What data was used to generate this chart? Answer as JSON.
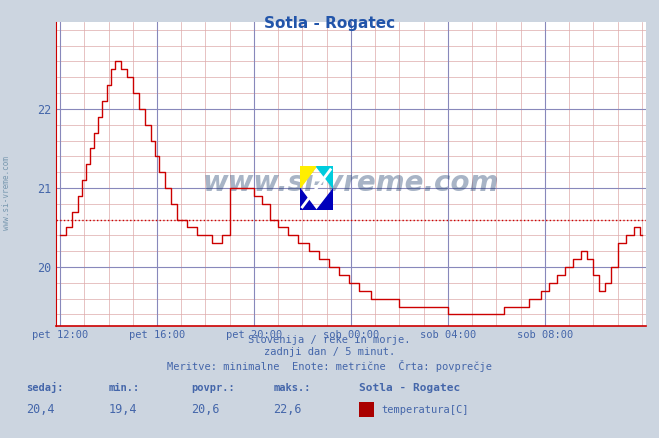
{
  "title": "Sotla - Rogatec",
  "title_color": "#2255aa",
  "bg_color": "#ccd5e0",
  "plot_bg_color": "#ffffff",
  "line_color": "#cc0000",
  "avg_value": 20.6,
  "grid_minor_color": "#ddaaaa",
  "grid_major_color": "#8888bb",
  "text_color": "#4466aa",
  "x_tick_labels": [
    "pet 12:00",
    "pet 16:00",
    "pet 20:00",
    "sob 00:00",
    "sob 04:00",
    "sob 08:00"
  ],
  "x_tick_positions": [
    0,
    48,
    96,
    144,
    192,
    240
  ],
  "y_ticks": [
    20,
    21,
    22
  ],
  "ylim_min": 19.25,
  "ylim_max": 23.1,
  "xlim_min": -2,
  "xlim_max": 290,
  "subtitle1": "Slovenija / reke in morje.",
  "subtitle2": "zadnji dan / 5 minut.",
  "subtitle3": "Meritve: minimalne  Enote: metrične  Črta: povprečje",
  "legend_label1": "sedaj:",
  "legend_label2": "min.:",
  "legend_label3": "povpr.:",
  "legend_label4": "maks.:",
  "legend_val1": "20,4",
  "legend_val2": "19,4",
  "legend_val3": "20,6",
  "legend_val4": "22,6",
  "legend_series": "Sotla - Rogatec",
  "legend_series_label": "temperatura[C]",
  "legend_series_color": "#aa0000",
  "watermark": "www.si-vreme.com",
  "watermark_color": "#1a3a6a",
  "watermark_alpha": 0.38,
  "ylabel_text": "www.si-vreme.com"
}
